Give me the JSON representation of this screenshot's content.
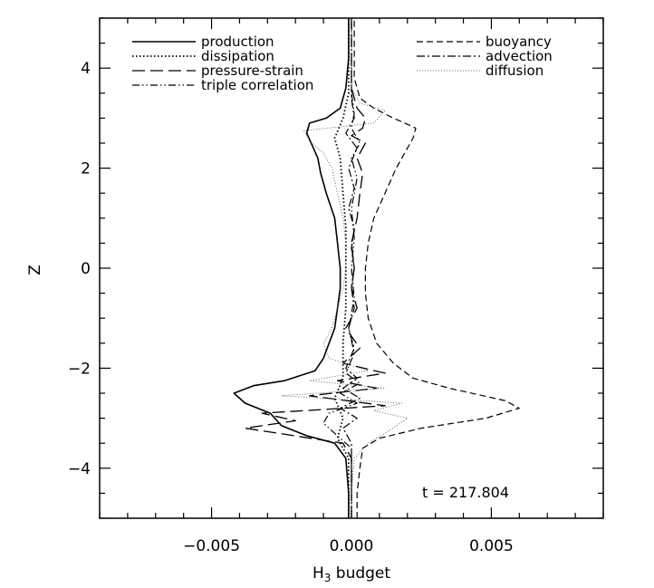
{
  "chart_data": {
    "type": "line",
    "xlabel": "H",
    "xlabel_sub": "3",
    "xlabel_suffix": " budget",
    "ylabel": "Z",
    "xlim": [
      -0.009,
      0.009
    ],
    "ylim": [
      -5,
      5
    ],
    "x_ticks": [
      -0.005,
      0.0,
      0.005
    ],
    "x_tick_labels": [
      "−0.005",
      "0.000",
      "0.005"
    ],
    "y_ticks": [
      -4,
      -2,
      0,
      2,
      4
    ],
    "y_tick_labels": [
      "−4",
      "−2",
      "0",
      "2",
      "4"
    ],
    "legend_position": "top",
    "annotation": "t = 217.804",
    "series": [
      {
        "name": "production",
        "style": "solid",
        "points": [
          [
            -0.0001,
            -5
          ],
          [
            -0.0001,
            -4.5
          ],
          [
            -0.0002,
            -3.8
          ],
          [
            -0.0006,
            -3.5
          ],
          [
            -0.0016,
            -3.35
          ],
          [
            -0.0025,
            -3.15
          ],
          [
            -0.0029,
            -2.9
          ],
          [
            -0.0038,
            -2.7
          ],
          [
            -0.0042,
            -2.5
          ],
          [
            -0.0035,
            -2.35
          ],
          [
            -0.0024,
            -2.25
          ],
          [
            -0.0013,
            -2.05
          ],
          [
            -0.001,
            -1.8
          ],
          [
            -0.0008,
            -1.5
          ],
          [
            -0.0006,
            -1.2
          ],
          [
            -0.0005,
            -0.8
          ],
          [
            -0.0004,
            -0.4
          ],
          [
            -0.0004,
            0
          ],
          [
            -0.0005,
            0.5
          ],
          [
            -0.0006,
            1
          ],
          [
            -0.0009,
            1.5
          ],
          [
            -0.0011,
            1.9
          ],
          [
            -0.0012,
            2.2
          ],
          [
            -0.0014,
            2.45
          ],
          [
            -0.0016,
            2.7
          ],
          [
            -0.0015,
            2.9
          ],
          [
            -0.0009,
            3
          ],
          [
            -0.0004,
            3.2
          ],
          [
            -0.0002,
            3.6
          ],
          [
            -0.0001,
            4.2
          ],
          [
            -0.0001,
            5
          ]
        ]
      },
      {
        "name": "dissipation",
        "style": "dotted",
        "points": [
          [
            -0.0001,
            -5
          ],
          [
            -0.0001,
            -4.5
          ],
          [
            -0.0001,
            -3.8
          ],
          [
            -0.0005,
            -3.4
          ],
          [
            -0.0003,
            -3
          ],
          [
            -0.0006,
            -2.6
          ],
          [
            -0.0003,
            -2.2
          ],
          [
            -0.0003,
            -1.5
          ],
          [
            -0.0002,
            -0.8
          ],
          [
            -0.0002,
            0
          ],
          [
            -0.0002,
            0.8
          ],
          [
            -0.0003,
            1.5
          ],
          [
            -0.0004,
            2.2
          ],
          [
            -0.0006,
            2.6
          ],
          [
            -0.0003,
            3
          ],
          [
            -0.0001,
            3.5
          ],
          [
            -0.0001,
            5
          ]
        ]
      },
      {
        "name": "pressure-strain",
        "style": "longdash",
        "points": [
          [
            0.0,
            -5
          ],
          [
            0.0,
            -4.5
          ],
          [
            0.0,
            -3.8
          ],
          [
            -0.0003,
            -3.5
          ],
          [
            -0.0038,
            -3.2
          ],
          [
            -0.002,
            -3.05
          ],
          [
            -0.0032,
            -2.9
          ],
          [
            0.0012,
            -2.75
          ],
          [
            -0.0015,
            -2.55
          ],
          [
            0.0009,
            -2.4
          ],
          [
            -0.0005,
            -2.25
          ],
          [
            0.0012,
            -2.1
          ],
          [
            -0.0003,
            -1.9
          ],
          [
            0.0003,
            -1.6
          ],
          [
            -0.0002,
            -1.2
          ],
          [
            0.0002,
            -0.8
          ],
          [
            0.0,
            -0.4
          ],
          [
            0.0001,
            0
          ],
          [
            0.0,
            0.5
          ],
          [
            0.0002,
            1
          ],
          [
            0.0003,
            1.5
          ],
          [
            0.0004,
            1.9
          ],
          [
            0.0002,
            2.2
          ],
          [
            0.0005,
            2.5
          ],
          [
            0.0,
            2.65
          ],
          [
            0.0004,
            2.8
          ],
          [
            0.0005,
            3
          ],
          [
            0.0002,
            3.2
          ],
          [
            0.0,
            3.6
          ],
          [
            0.0,
            5
          ]
        ]
      },
      {
        "name": "triple correlation",
        "style": "dashdotdot",
        "points": [
          [
            0.0,
            -5
          ],
          [
            0.0,
            -4.5
          ],
          [
            0.0,
            -3.6
          ],
          [
            -0.0004,
            -3.4
          ],
          [
            -0.001,
            -3.1
          ],
          [
            -0.0008,
            -2.9
          ],
          [
            0.0002,
            -2.7
          ],
          [
            -0.0004,
            -2.5
          ],
          [
            0.0003,
            -2.3
          ],
          [
            -0.0002,
            -2.1
          ],
          [
            0.0001,
            -1.7
          ],
          [
            -0.0001,
            -1.2
          ],
          [
            0.0001,
            -0.6
          ],
          [
            0.0,
            0
          ],
          [
            0.0001,
            0.6
          ],
          [
            0.0,
            1.2
          ],
          [
            0.0002,
            1.8
          ],
          [
            0.0,
            2.2
          ],
          [
            0.0003,
            2.5
          ],
          [
            0.0,
            2.8
          ],
          [
            0.0001,
            3.1
          ],
          [
            0.0,
            3.5
          ],
          [
            0.0,
            5
          ]
        ]
      },
      {
        "name": "buoyancy",
        "style": "shortdash",
        "points": [
          [
            0.0002,
            -5
          ],
          [
            0.0002,
            -4.5
          ],
          [
            0.0003,
            -4.0
          ],
          [
            0.0004,
            -3.6
          ],
          [
            0.001,
            -3.4
          ],
          [
            0.0025,
            -3.2
          ],
          [
            0.0048,
            -3.0
          ],
          [
            0.006,
            -2.8
          ],
          [
            0.0055,
            -2.65
          ],
          [
            0.0035,
            -2.4
          ],
          [
            0.0022,
            -2.2
          ],
          [
            0.0015,
            -1.9
          ],
          [
            0.0009,
            -1.5
          ],
          [
            0.0006,
            -1.0
          ],
          [
            0.0005,
            -0.5
          ],
          [
            0.0005,
            0
          ],
          [
            0.0006,
            0.5
          ],
          [
            0.0008,
            1.0
          ],
          [
            0.0012,
            1.5
          ],
          [
            0.0016,
            2.0
          ],
          [
            0.0019,
            2.3
          ],
          [
            0.0022,
            2.6
          ],
          [
            0.0023,
            2.8
          ],
          [
            0.0015,
            3.0
          ],
          [
            0.0008,
            3.2
          ],
          [
            0.0003,
            3.4
          ],
          [
            0.0001,
            3.8
          ],
          [
            0.0001,
            5
          ]
        ]
      },
      {
        "name": "advection",
        "style": "dashdot",
        "points": [
          [
            0.0,
            -5
          ],
          [
            0.0,
            -4.5
          ],
          [
            0.0,
            -3.5
          ],
          [
            -0.0003,
            -3.2
          ],
          [
            0.0002,
            -3
          ],
          [
            -0.0004,
            -2.8
          ],
          [
            0.0003,
            -2.6
          ],
          [
            -0.0003,
            -2.4
          ],
          [
            0.0002,
            -2.2
          ],
          [
            -0.0002,
            -2
          ],
          [
            0.0001,
            -1.6
          ],
          [
            -0.0001,
            -1.2
          ],
          [
            0.0001,
            -0.8
          ],
          [
            0.0,
            -0.4
          ],
          [
            0.0001,
            0
          ],
          [
            0.0,
            0.4
          ],
          [
            0.0001,
            0.8
          ],
          [
            -0.0001,
            1.2
          ],
          [
            0.0001,
            1.6
          ],
          [
            -0.0001,
            2
          ],
          [
            0.0002,
            2.4
          ],
          [
            -0.0002,
            2.7
          ],
          [
            0.0001,
            3
          ],
          [
            0.0,
            3.4
          ],
          [
            0.0,
            5
          ]
        ]
      },
      {
        "name": "diffusion",
        "style": "finedot",
        "points": [
          [
            0.0,
            -5
          ],
          [
            0.0,
            -4.5
          ],
          [
            0.0001,
            -3.8
          ],
          [
            0.0006,
            -3.5
          ],
          [
            0.0012,
            -3.3
          ],
          [
            0.002,
            -3.0
          ],
          [
            0.0008,
            -2.85
          ],
          [
            0.0018,
            -2.7
          ],
          [
            -0.0025,
            -2.55
          ],
          [
            0.0012,
            -2.4
          ],
          [
            -0.0015,
            -2.25
          ],
          [
            0.0006,
            -2.05
          ],
          [
            -0.0008,
            -1.8
          ],
          [
            -0.001,
            -1.5
          ],
          [
            -0.0007,
            -1.2
          ],
          [
            -0.0005,
            -0.8
          ],
          [
            -0.0003,
            -0.4
          ],
          [
            -0.0002,
            0
          ],
          [
            -0.0002,
            0.5
          ],
          [
            -0.0003,
            1
          ],
          [
            -0.0005,
            1.5
          ],
          [
            -0.0007,
            2.0
          ],
          [
            -0.001,
            2.3
          ],
          [
            -0.0015,
            2.55
          ],
          [
            -0.0017,
            2.75
          ],
          [
            0.0008,
            2.9
          ],
          [
            0.0012,
            3.15
          ],
          [
            0.0003,
            3.3
          ],
          [
            0.0,
            3.6
          ],
          [
            0.0,
            5
          ]
        ]
      }
    ]
  }
}
